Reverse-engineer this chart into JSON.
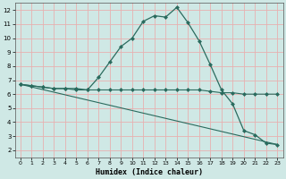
{
  "xlabel": "Humidex (Indice chaleur)",
  "ylabel": "",
  "background_color": "#cfe8e5",
  "grid_color_major": "#e8b0b0",
  "grid_color_minor": "#e8c8c8",
  "line_color": "#2a6b5e",
  "xlim": [
    -0.5,
    23.5
  ],
  "ylim": [
    1.5,
    12.5
  ],
  "yticks": [
    2,
    3,
    4,
    5,
    6,
    7,
    8,
    9,
    10,
    11,
    12
  ],
  "xticks": [
    0,
    1,
    2,
    3,
    4,
    5,
    6,
    7,
    8,
    9,
    10,
    11,
    12,
    13,
    14,
    15,
    16,
    17,
    18,
    19,
    20,
    21,
    22,
    23
  ],
  "series1_x": [
    0,
    1,
    2,
    3,
    4,
    5,
    6,
    7,
    8,
    9,
    10,
    11,
    12,
    13,
    14,
    15,
    16,
    17,
    18,
    19,
    20,
    21,
    22,
    23
  ],
  "series1_y": [
    6.7,
    6.6,
    6.5,
    6.4,
    6.4,
    6.4,
    6.3,
    7.2,
    8.3,
    9.4,
    10.0,
    11.2,
    11.6,
    11.5,
    12.2,
    11.1,
    9.8,
    8.1,
    6.3,
    5.3,
    3.4,
    3.1,
    2.5,
    2.4
  ],
  "series2_x": [
    0,
    1,
    2,
    3,
    4,
    5,
    6,
    7,
    8,
    9,
    10,
    11,
    12,
    13,
    14,
    15,
    16,
    17,
    18,
    19,
    20,
    21,
    22,
    23
  ],
  "series2_y": [
    6.7,
    6.6,
    6.5,
    6.4,
    6.4,
    6.3,
    6.3,
    6.3,
    6.3,
    6.3,
    6.3,
    6.3,
    6.3,
    6.3,
    6.3,
    6.3,
    6.3,
    6.2,
    6.1,
    6.1,
    6.0,
    6.0,
    6.0,
    6.0
  ],
  "series3_x": [
    0,
    23
  ],
  "series3_y": [
    6.7,
    2.4
  ]
}
